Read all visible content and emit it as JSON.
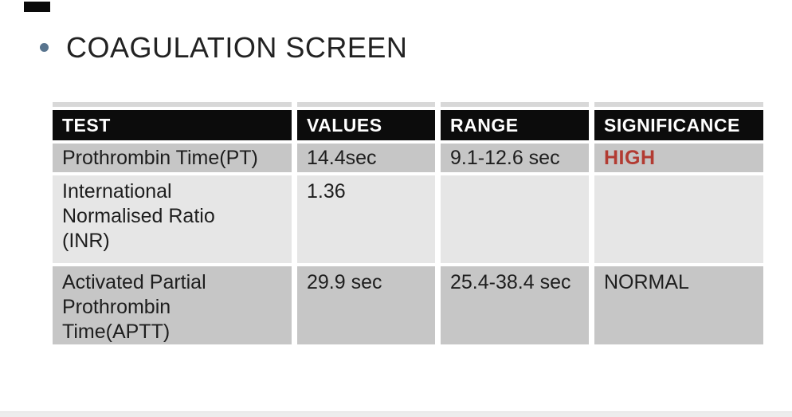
{
  "page": {
    "title": "COAGULATION SCREEN"
  },
  "table": {
    "columns": [
      "TEST",
      "VALUES",
      "RANGE",
      "SIGNIFICANCE"
    ],
    "rows": [
      {
        "test": "Prothrombin Time(PT)",
        "value": "14.4sec",
        "range": "9.1-12.6 sec",
        "significance": "HIGH"
      },
      {
        "test": "International\nNormalised Ratio\n(INR)",
        "value": "1.36",
        "range": "",
        "significance": ""
      },
      {
        "test": "Activated Partial\nProthrombin\nTime(APTT)",
        "value": "29.9 sec",
        "range": "25.4-38.4 sec",
        "significance": "NORMAL"
      }
    ]
  },
  "colors": {
    "header_bg": "#0c0c0c",
    "header_text": "#ffffff",
    "row_dark": "#c6c6c6",
    "row_light": "#e6e6e6",
    "top_strip": "#d8d8d8",
    "high_red": "#b23b32",
    "bullet": "#58748e"
  }
}
